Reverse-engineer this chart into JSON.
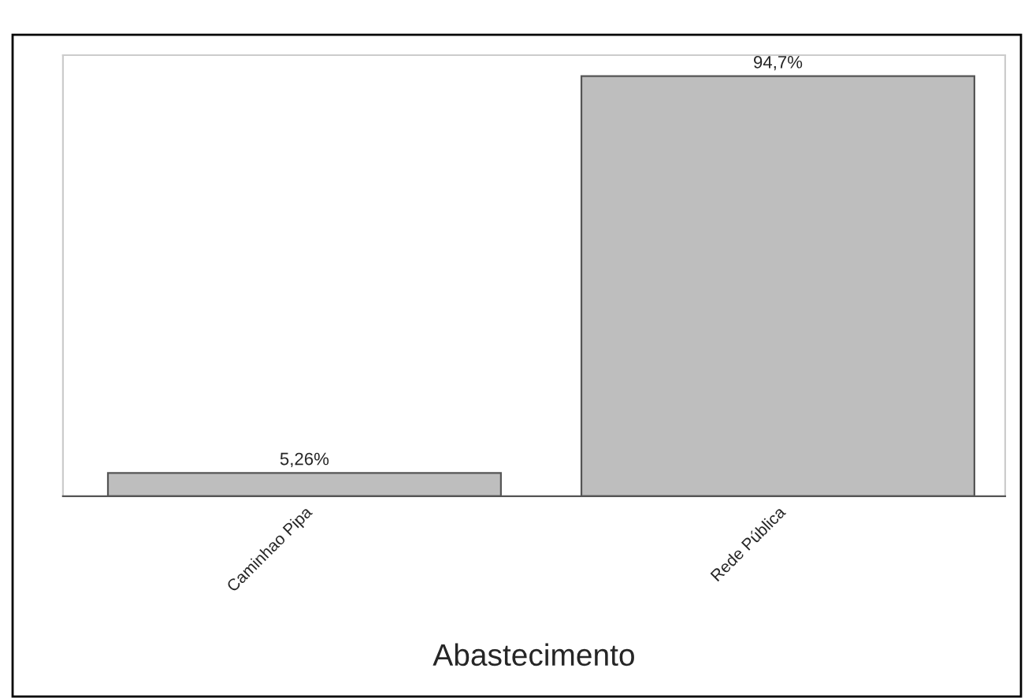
{
  "chart_data": {
    "type": "bar",
    "xlabel": "Abastecimento",
    "categories": [
      "Caminhao Pipa",
      "Rede Pública"
    ],
    "values": [
      5.26,
      94.7
    ],
    "value_labels": [
      "5,26%",
      "94,7%"
    ],
    "color": "#bebebe",
    "grid": false,
    "legend": false
  }
}
